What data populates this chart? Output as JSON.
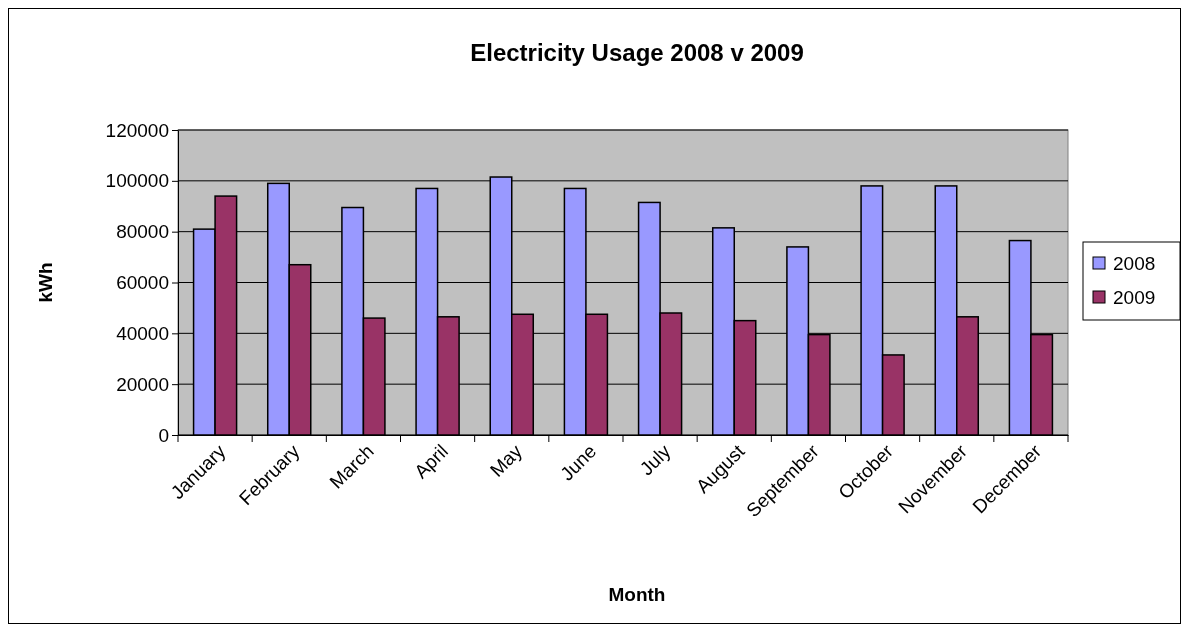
{
  "chart_data": {
    "type": "bar",
    "title": "Electricity Usage 2008 v 2009",
    "xlabel": "Month",
    "ylabel": "kWh",
    "categories": [
      "January",
      "February",
      "March",
      "April",
      "May",
      "June",
      "July",
      "August",
      "September",
      "October",
      "November",
      "December"
    ],
    "series": [
      {
        "name": "2008",
        "color": "#9999ff",
        "values": [
          81000,
          99000,
          89500,
          97000,
          101500,
          97000,
          91500,
          81500,
          74000,
          98000,
          98000,
          76500
        ]
      },
      {
        "name": "2009",
        "color": "#993366",
        "values": [
          94000,
          67000,
          46000,
          46500,
          47500,
          47500,
          48000,
          45000,
          39500,
          31500,
          46500,
          39500
        ]
      }
    ],
    "ylim": [
      0,
      120000
    ],
    "yticks": [
      0,
      20000,
      40000,
      60000,
      80000,
      100000,
      120000
    ],
    "grid": "y",
    "legend": "right"
  }
}
